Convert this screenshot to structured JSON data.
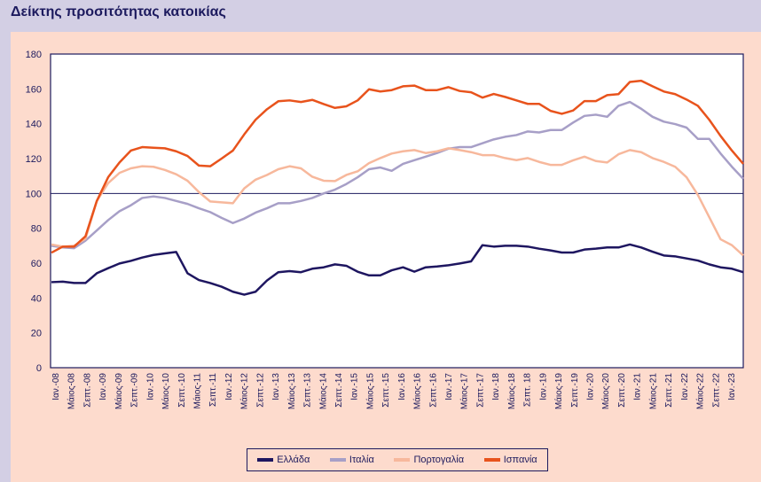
{
  "title": "Δείκτης προσιτότητας κατοικίας",
  "chart_data": {
    "type": "line",
    "title": "Δείκτης προσιτότητας κατοικίας",
    "xlabel": "",
    "ylabel": "",
    "ylim": [
      0,
      180
    ],
    "yticks": [
      0,
      20,
      40,
      60,
      80,
      100,
      120,
      140,
      160,
      180
    ],
    "reference_line": 100,
    "legend_position": "bottom",
    "x_tick_labels": [
      "Ιαν.-08",
      "Μάιος-08",
      "Σεπτ.-08",
      "Ιαν.-09",
      "Μάιος-09",
      "Σεπτ.-09",
      "Ιαν.-10",
      "Μάιος-10",
      "Σεπτ.-10",
      "Μάιος-11",
      "Σεπτ.-11",
      "Ιαν.-12",
      "Μάιος-12",
      "Σεπτ.-12",
      "Ιαν.-13",
      "Μάιος-13",
      "Σεπτ.-13",
      "Μάιος-14",
      "Σεπτ.-14",
      "Ιαν.-15",
      "Μάιος-15",
      "Σεπτ.-15",
      "Ιαν.-16",
      "Μάιος-16",
      "Σεπτ.-16",
      "Ιαν.-17",
      "Μάιος-17",
      "Σεπτ.-17",
      "Ιαν.-18",
      "Μάιος-18",
      "Σεπτ. 18",
      "Ιαν.-19",
      "Μάιος-19",
      "Σεπτ.-19",
      "Ιαν.-20",
      "Μάιος-20",
      "Σεπτ.-20",
      "Ιαν.-21",
      "Μάιος-21",
      "Σεπτ.-21",
      "Ιαν.-22",
      "Μάιος-22",
      "Σεπτ.-22",
      "Ιαν.-23"
    ],
    "series": [
      {
        "name": "Ελλάδα",
        "color": "#1e1660",
        "width": 2.5,
        "values": [
          49.1,
          49.4,
          48.6,
          48.6,
          54.2,
          57.1,
          59.8,
          61.3,
          63.2,
          64.7,
          65.6,
          66.4,
          54.2,
          50.3,
          48.6,
          46.5,
          43.6,
          41.9,
          43.6,
          50,
          54.8,
          55.4,
          54.8,
          56.8,
          57.6,
          59.3,
          58.5,
          55.1,
          53,
          53,
          55.9,
          57.6,
          55.1,
          57.6,
          58.1,
          58.8,
          59.8,
          61,
          70.3,
          69.5,
          70,
          70,
          69.5,
          68.3,
          67.3,
          66.1,
          66.1,
          67.8,
          68.3,
          69,
          69,
          70.7,
          69,
          66.6,
          64.4,
          63.9,
          62.7,
          61.5,
          59.3,
          57.6,
          56.8,
          54.8
        ]
      },
      {
        "name": "Ιταλία",
        "color": "#a79fc7",
        "width": 2.5,
        "values": [
          70,
          69,
          68.6,
          72.9,
          78.8,
          84.7,
          89.8,
          93.2,
          97.4,
          98.3,
          97.4,
          95.7,
          94,
          91.5,
          89.3,
          86,
          83,
          85.6,
          89,
          91.5,
          94.4,
          94.4,
          95.7,
          97.4,
          100,
          102.2,
          105.4,
          109.3,
          113.9,
          114.9,
          113,
          117,
          119.1,
          121.1,
          123.2,
          125.7,
          126.6,
          126.6,
          128.8,
          131,
          132.5,
          133.5,
          135.6,
          135,
          136.4,
          136.4,
          140.7,
          144.5,
          145.2,
          144,
          150.3,
          152.5,
          148.6,
          144,
          141.2,
          139.8,
          137.8,
          131.3,
          131.3,
          122.9,
          115.3,
          108.4
        ]
      },
      {
        "name": "Πορτογαλία",
        "color": "#f7b89c",
        "width": 2.5,
        "values": [
          70.7,
          69.5,
          70,
          74,
          95.7,
          105.9,
          111.8,
          114.4,
          115.6,
          115.3,
          113.5,
          111,
          107.3,
          100.8,
          95.4,
          94.9,
          94.4,
          102.9,
          107.9,
          110.6,
          113.9,
          115.6,
          114.4,
          109.6,
          107.3,
          107.1,
          110.6,
          112.7,
          117.4,
          120.3,
          122.9,
          124.2,
          124.9,
          123.2,
          124.2,
          125.9,
          124.9,
          123.7,
          122,
          122,
          120.3,
          119.1,
          120.3,
          118.1,
          116.4,
          116.4,
          119,
          121.1,
          118.6,
          117.8,
          122.5,
          124.9,
          123.7,
          120.3,
          118.1,
          115.3,
          109.3,
          99.1,
          86.4,
          73.7,
          70.3,
          64.4
        ]
      },
      {
        "name": "Ισπανία",
        "color": "#e8531c",
        "width": 2.5,
        "values": [
          66,
          69.5,
          69.5,
          75.4,
          95.7,
          109.3,
          117.8,
          124.6,
          126.6,
          126.2,
          125.9,
          124.2,
          121.5,
          116,
          115.6,
          120,
          124.6,
          133.9,
          142.3,
          148.3,
          152.9,
          153.4,
          152.5,
          153.7,
          151.3,
          149.1,
          150,
          153.4,
          159.8,
          158.5,
          159.3,
          161.5,
          161.9,
          159.3,
          159.3,
          161,
          158.8,
          158.1,
          155,
          157.1,
          155.4,
          153.4,
          151.4,
          151.4,
          147.4,
          145.7,
          147.6,
          153,
          153,
          156.4,
          157,
          164,
          164.7,
          161.5,
          158.5,
          157,
          153.9,
          150.3,
          142.3,
          133,
          124.6,
          117
        ]
      }
    ]
  }
}
